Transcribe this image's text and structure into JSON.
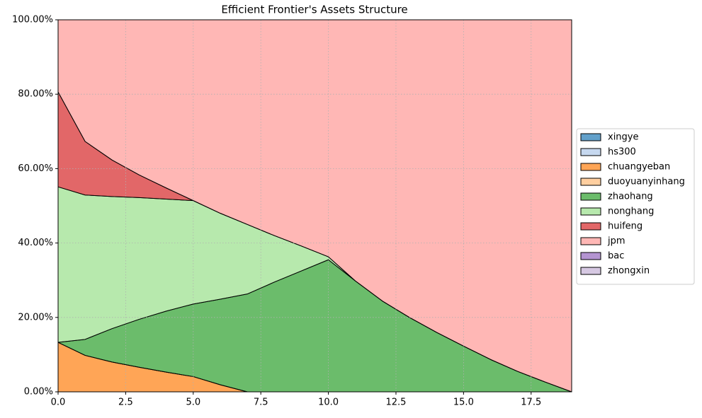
{
  "chart_data": {
    "type": "stackedarea",
    "title": "Efficient Frontier's Assets Structure",
    "x": [
      0,
      1,
      2,
      3,
      4,
      5,
      6,
      7,
      8,
      9,
      10,
      11,
      12,
      13,
      14,
      15,
      16,
      17,
      18,
      19
    ],
    "series": [
      {
        "name": "xingye",
        "color": "#1f77b4",
        "values": [
          0,
          0,
          0,
          0,
          0,
          0,
          0,
          0,
          0,
          0,
          0,
          0,
          0,
          0,
          0,
          0,
          0,
          0,
          0,
          0
        ]
      },
      {
        "name": "hs300",
        "color": "#aec7e8",
        "values": [
          0,
          0,
          0,
          0,
          0,
          0,
          0,
          0,
          0,
          0,
          0,
          0,
          0,
          0,
          0,
          0,
          0,
          0,
          0,
          0
        ]
      },
      {
        "name": "chuangyeban",
        "color": "#ff7f0e",
        "values": [
          13.3,
          9.8,
          8.0,
          6.6,
          5.3,
          4.1,
          1.9,
          0,
          0,
          0,
          0,
          0,
          0,
          0,
          0,
          0,
          0,
          0,
          0,
          0
        ]
      },
      {
        "name": "duoyuanyinhang",
        "color": "#ffbb78",
        "values": [
          0,
          0,
          0,
          0,
          0,
          0,
          0,
          0,
          0,
          0,
          0,
          0,
          0,
          0,
          0,
          0,
          0,
          0,
          0,
          0
        ]
      },
      {
        "name": "zhaohang",
        "color": "#2ca02c",
        "values": [
          0,
          4.3,
          9.0,
          12.9,
          16.4,
          19.5,
          23.0,
          26.3,
          29.5,
          32.5,
          35.5,
          29.8,
          24.4,
          20.0,
          16.0,
          12.3,
          8.7,
          5.5,
          2.7,
          0
        ]
      },
      {
        "name": "nonghang",
        "color": "#98df8a",
        "values": [
          41.8,
          38.8,
          35.5,
          32.7,
          30.1,
          27.8,
          23.1,
          18.7,
          12.5,
          6.7,
          0.8,
          0,
          0,
          0,
          0,
          0,
          0,
          0,
          0,
          0
        ]
      },
      {
        "name": "huifeng",
        "color": "#d62728",
        "values": [
          25.5,
          14.4,
          9.8,
          6.1,
          3.0,
          0,
          0,
          0,
          0,
          0,
          0,
          0,
          0,
          0,
          0,
          0,
          0,
          0,
          0,
          0
        ]
      },
      {
        "name": "jpm",
        "color": "#ff9896",
        "values": [
          19.4,
          32.7,
          37.7,
          41.7,
          45.2,
          48.6,
          52.0,
          55.0,
          58.0,
          60.8,
          63.7,
          70.2,
          75.6,
          80.0,
          84.0,
          87.7,
          91.3,
          94.5,
          97.3,
          100
        ]
      },
      {
        "name": "bac",
        "color": "#9467bd",
        "values": [
          0,
          0,
          0,
          0,
          0,
          0,
          0,
          0,
          0,
          0,
          0,
          0,
          0,
          0,
          0,
          0,
          0,
          0,
          0,
          0
        ]
      },
      {
        "name": "zhongxin",
        "color": "#c5b0d5",
        "values": [
          0,
          0,
          0,
          0,
          0,
          0,
          0,
          0,
          0,
          0,
          0,
          0,
          0,
          0,
          0,
          0,
          0,
          0,
          0,
          0
        ]
      }
    ],
    "xlim": [
      0,
      19
    ],
    "xticks": [
      {
        "value": 0,
        "label": "0.0"
      },
      2.5,
      {
        "value": 5,
        "label": "5.0"
      },
      7.5,
      {
        "value": 10,
        "label": "10.0"
      },
      12.5,
      {
        "value": 15,
        "label": "15.0"
      },
      17.5
    ],
    "ylim": [
      0,
      100
    ],
    "yticks": [
      {
        "value": 0,
        "label": "0.00%"
      },
      {
        "value": 20,
        "label": "20.00%"
      },
      {
        "value": 40,
        "label": "40.00%"
      },
      {
        "value": 60,
        "label": "60.00%"
      },
      {
        "value": 80,
        "label": "80.00%"
      },
      {
        "value": 100,
        "label": "100.00%"
      }
    ],
    "grid": true,
    "legend": "right",
    "alpha": 0.7
  }
}
